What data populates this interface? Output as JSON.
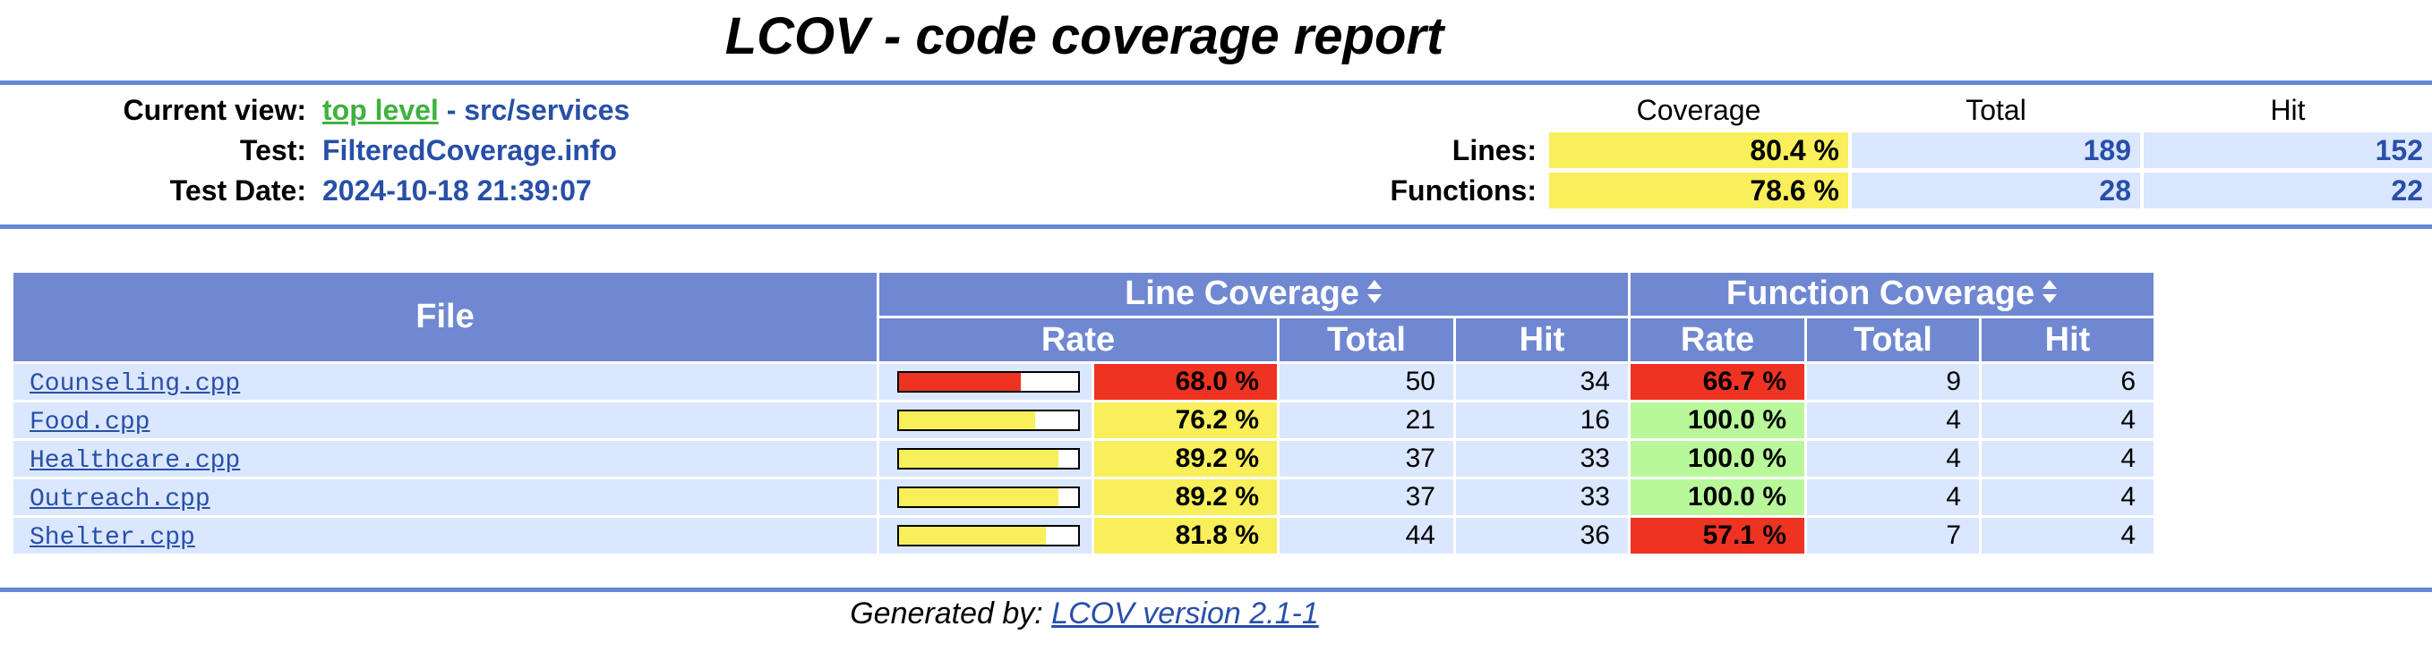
{
  "title": "LCOV - code coverage report",
  "header": {
    "current_view_label": "Current view:",
    "top_level_link": "top level",
    "path_sep": " - ",
    "path": "src/services",
    "test_label": "Test:",
    "test_value": "FilteredCoverage.info",
    "test_date_label": "Test Date:",
    "test_date_value": "2024-10-18 21:39:07"
  },
  "summary": {
    "col_coverage": "Coverage",
    "col_total": "Total",
    "col_hit": "Hit",
    "lines_label": "Lines:",
    "lines_coverage": "80.4 %",
    "lines_total": "189",
    "lines_hit": "152",
    "functions_label": "Functions:",
    "functions_coverage": "78.6 %",
    "functions_total": "28",
    "functions_hit": "22"
  },
  "table": {
    "file_header": "File",
    "line_coverage_header": "Line Coverage",
    "function_coverage_header": "Function Coverage",
    "rate": "Rate",
    "total": "Total",
    "hit": "Hit",
    "rows": [
      {
        "file": "Counseling.cpp",
        "line_rate": "68.0 %",
        "line_fraction": 0.68,
        "line_total": "50",
        "line_hit": "34",
        "func_rate": "66.7 %",
        "func_total": "9",
        "func_hit": "6"
      },
      {
        "file": "Food.cpp",
        "line_rate": "76.2 %",
        "line_fraction": 0.762,
        "line_total": "21",
        "line_hit": "16",
        "func_rate": "100.0 %",
        "func_total": "4",
        "func_hit": "4"
      },
      {
        "file": "Healthcare.cpp",
        "line_rate": "89.2 %",
        "line_fraction": 0.892,
        "line_total": "37",
        "line_hit": "33",
        "func_rate": "100.0 %",
        "func_total": "4",
        "func_hit": "4"
      },
      {
        "file": "Outreach.cpp",
        "line_rate": "89.2 %",
        "line_fraction": 0.892,
        "line_total": "37",
        "line_hit": "33",
        "func_rate": "100.0 %",
        "func_total": "4",
        "func_hit": "4"
      },
      {
        "file": "Shelter.cpp",
        "line_rate": "81.8 %",
        "line_fraction": 0.818,
        "line_total": "44",
        "line_hit": "36",
        "func_rate": "57.1 %",
        "func_total": "7",
        "func_hit": "4"
      }
    ]
  },
  "colors": {
    "header_bg": "#6f88d1",
    "cell_bg": "#dae7fe",
    "low": "#ee3322",
    "medium": "#f8ef5a",
    "high": "#b8f89a",
    "link": "#284fa8",
    "top_level_link": "#3eb23e"
  },
  "footer": {
    "generated_by": "Generated by: ",
    "lcov_version": "LCOV version 2.1-1"
  }
}
